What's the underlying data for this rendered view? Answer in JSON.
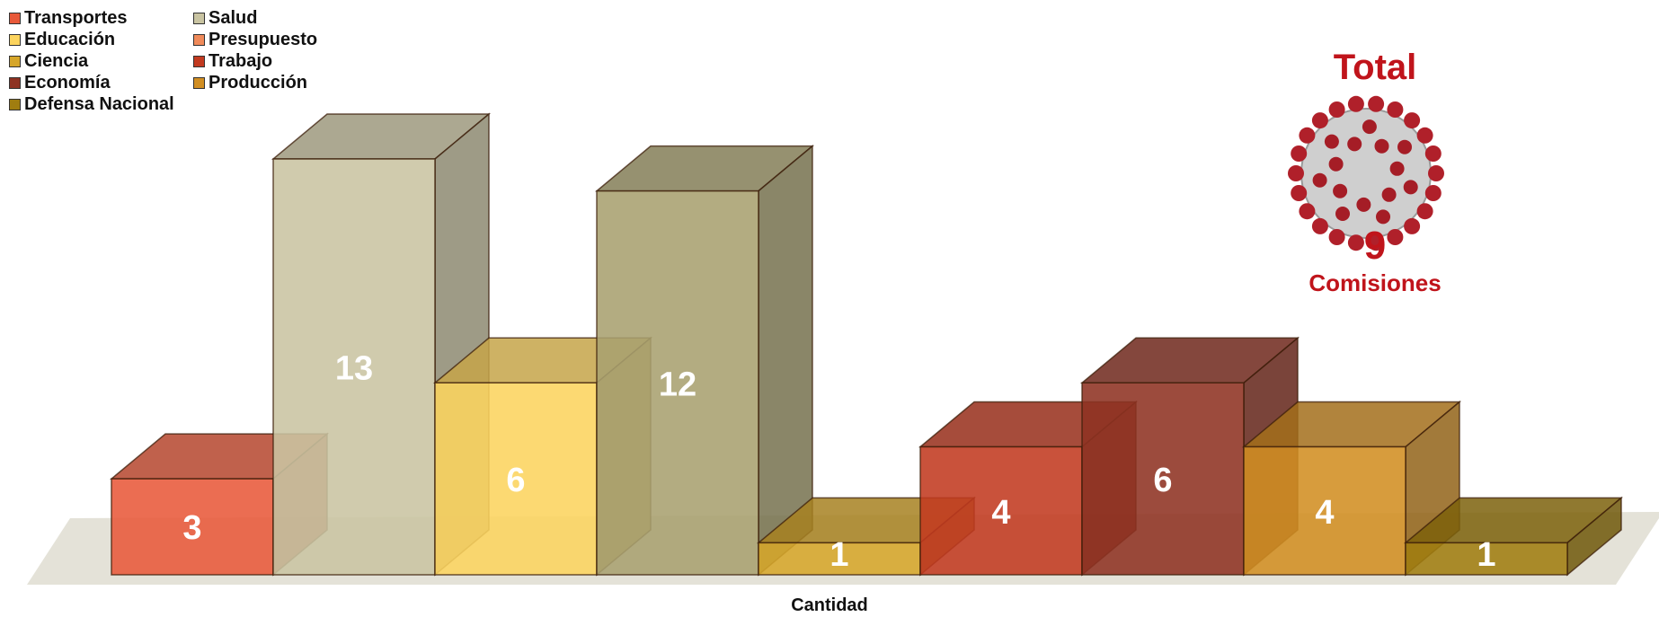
{
  "chart_data": {
    "type": "bar",
    "categories": [
      "Transportes",
      "Salud",
      "Educación",
      "Salud",
      "Ciencia",
      "Trabajo",
      "Economía",
      "Producción",
      "Defensa Nacional"
    ],
    "values": [
      3,
      13,
      6,
      12,
      1,
      4,
      6,
      4,
      1
    ],
    "colors": [
      "#e8593a",
      "#c9c4a2",
      "#fcd45e",
      "#a9a170",
      "#d6a62a",
      "#c23a20",
      "#8e3222",
      "#d18e22",
      "#a07d10"
    ],
    "xlabel": "Cantidad",
    "ylim": [
      0,
      14
    ],
    "legend": {
      "position": "top-left",
      "items": [
        {
          "label": "Transportes",
          "color": "#e8593a"
        },
        {
          "label": "Educación",
          "color": "#fcd45e"
        },
        {
          "label": "Ciencia",
          "color": "#d6a62a"
        },
        {
          "label": "Economía",
          "color": "#8e3222"
        },
        {
          "label": "Defensa Nacional",
          "color": "#a07d10"
        },
        {
          "label": "Salud",
          "color": "#c9c4a2"
        },
        {
          "label": "Presupuesto",
          "color": "#f08a5a"
        },
        {
          "label": "Trabajo",
          "color": "#c23a20"
        },
        {
          "label": "Producción",
          "color": "#d18e22"
        }
      ]
    }
  },
  "total": {
    "title": "Total",
    "count": "9",
    "label": "Comisiones",
    "icon": "coronavirus-icon",
    "color": "#c0141b"
  }
}
